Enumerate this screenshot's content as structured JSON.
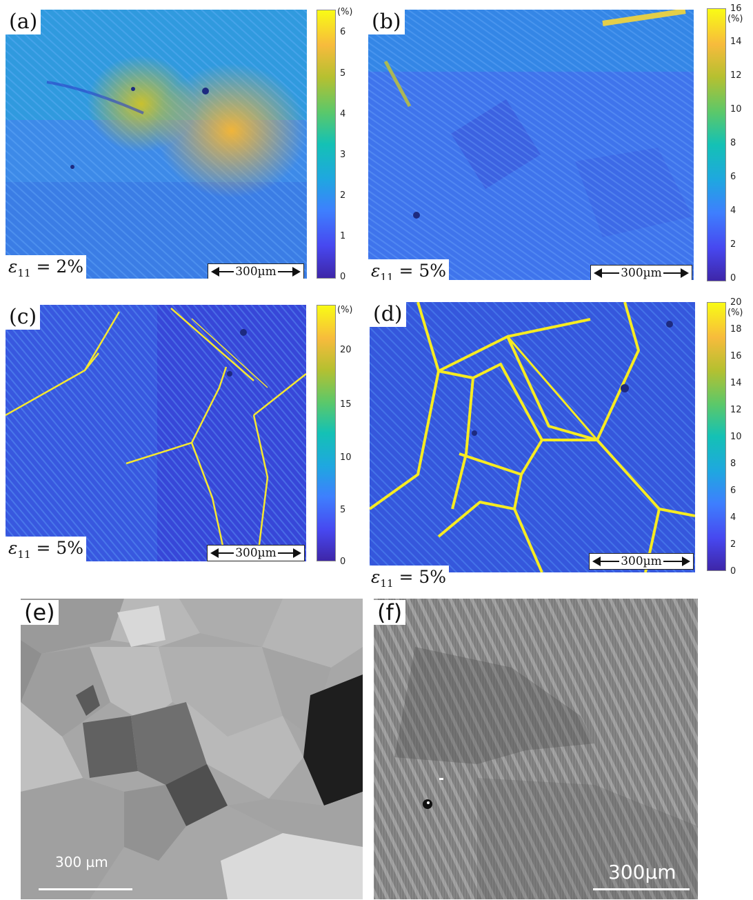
{
  "panels": {
    "a": {
      "label": "(a)",
      "strain": "= 2%",
      "scale": "300µm",
      "colorbar": {
        "ticks": [
          "0",
          "1",
          "2",
          "3",
          "4",
          "5",
          "6"
        ],
        "unit": "(%)"
      }
    },
    "b": {
      "label": "(b)",
      "strain": "= 5%",
      "scale": "300µm",
      "colorbar": {
        "ticks": [
          "0",
          "2",
          "4",
          "6",
          "8",
          "10",
          "12",
          "14",
          "16"
        ],
        "unit": "(%)"
      }
    },
    "c": {
      "label": "(c)",
      "strain": "= 5%",
      "scale": "300µm",
      "colorbar": {
        "ticks": [
          "0",
          "5",
          "10",
          "15",
          "20"
        ],
        "unit": "(%)"
      }
    },
    "d": {
      "label": "(d)",
      "strain": "= 5%",
      "scale": "300µm",
      "colorbar": {
        "ticks": [
          "0",
          "2",
          "4",
          "6",
          "8",
          "10",
          "12",
          "14",
          "16",
          "18",
          "20"
        ],
        "unit": "(%)"
      }
    },
    "e": {
      "label": "(e)",
      "scale": "300  µm"
    },
    "f": {
      "label": "(f)",
      "scale": "300µm"
    }
  },
  "strain_symbol": "ε",
  "strain_subscript": "11",
  "colormap": [
    "#3e26a8",
    "#4748f0",
    "#3e7ffe",
    "#1fa7e0",
    "#14c1b5",
    "#5bc86a",
    "#b6c030",
    "#f7bb3c",
    "#f9fb15"
  ]
}
